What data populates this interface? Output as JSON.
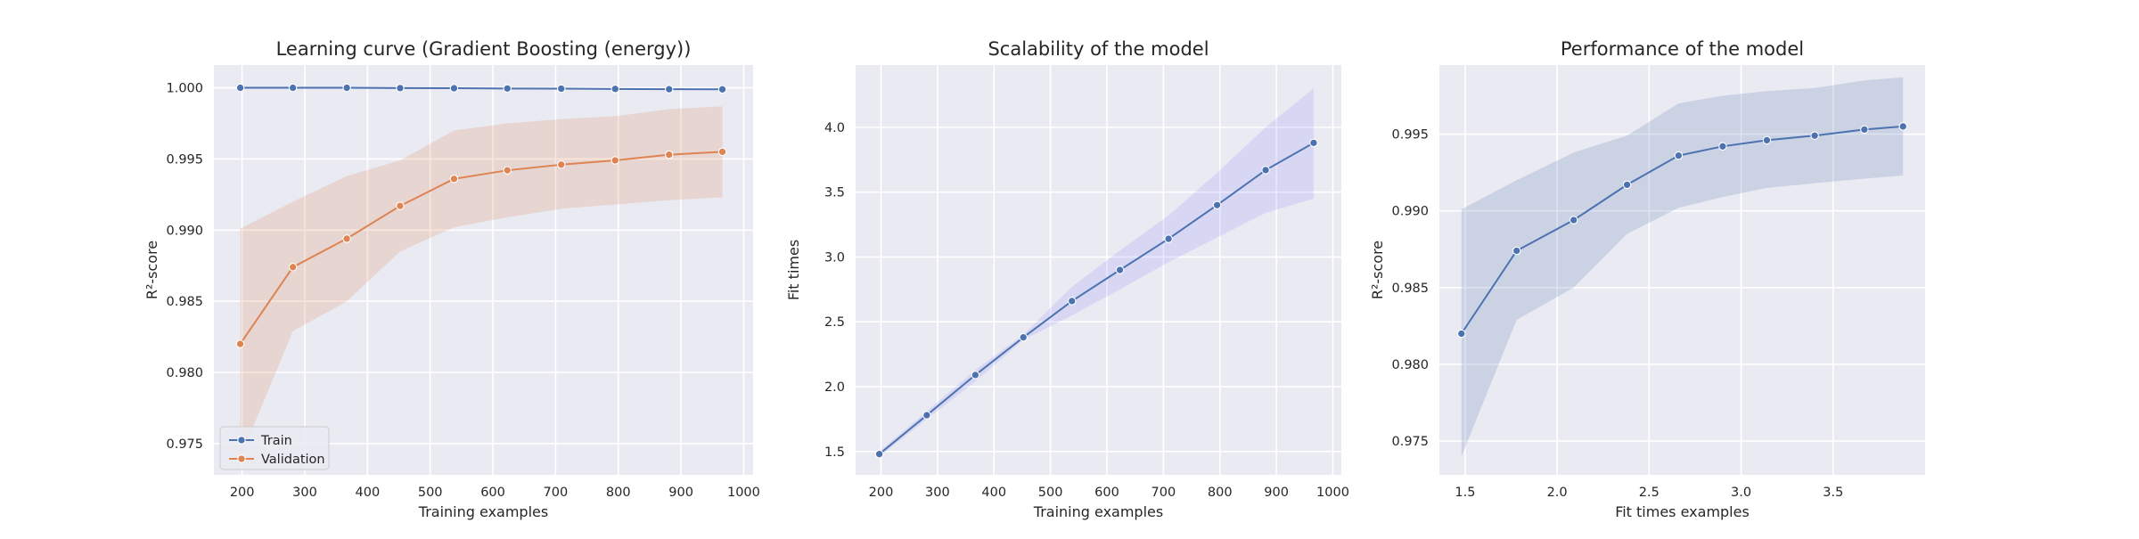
{
  "chart_data": [
    {
      "type": "line",
      "title": "Learning curve (Gradient Boosting (energy))",
      "xlabel": "Training examples",
      "ylabel": "R²-score",
      "xlim": [
        155,
        1015
      ],
      "ylim": [
        0.9728,
        1.0016
      ],
      "xticks": [
        200,
        300,
        400,
        500,
        600,
        700,
        800,
        900,
        1000
      ],
      "yticks": [
        0.975,
        0.98,
        0.985,
        0.99,
        0.995,
        1.0
      ],
      "ytick_labels": [
        "0.975",
        "0.980",
        "0.985",
        "0.990",
        "0.995",
        "1.000"
      ],
      "grid": true,
      "legend": "lower-left",
      "x": [
        197,
        281,
        367,
        452,
        538,
        623,
        709,
        795,
        881,
        966
      ],
      "series": [
        {
          "name": "Train",
          "color": "#4c72b0",
          "values": [
            1.0,
            1.0,
            1.0,
            0.99998,
            0.99997,
            0.99995,
            0.99994,
            0.99992,
            0.9999,
            0.99989
          ],
          "lower": [
            0.99998,
            0.99998,
            0.99998,
            0.99996,
            0.99995,
            0.99993,
            0.99992,
            0.9999,
            0.99988,
            0.99987
          ],
          "upper": [
            1.0,
            1.0,
            1.0,
            1.0,
            0.99999,
            0.99997,
            0.99996,
            0.99994,
            0.99992,
            0.99991
          ]
        },
        {
          "name": "Validation",
          "color": "#dd8452",
          "values": [
            0.982,
            0.9874,
            0.9894,
            0.9917,
            0.9936,
            0.9942,
            0.9946,
            0.9949,
            0.9953,
            0.9955
          ],
          "lower": [
            0.974,
            0.9829,
            0.985,
            0.9885,
            0.9902,
            0.9909,
            0.9915,
            0.9918,
            0.9921,
            0.9923
          ],
          "upper": [
            0.9901,
            0.992,
            0.9938,
            0.9949,
            0.997,
            0.9975,
            0.9978,
            0.998,
            0.9985,
            0.9987
          ]
        }
      ]
    },
    {
      "type": "line",
      "title": "Scalability of the model",
      "xlabel": "Training examples",
      "ylabel": "Fit times",
      "xlim": [
        155,
        1015
      ],
      "ylim": [
        1.32,
        4.48
      ],
      "xticks": [
        200,
        300,
        400,
        500,
        600,
        700,
        800,
        900,
        1000
      ],
      "yticks": [
        1.5,
        2.0,
        2.5,
        3.0,
        3.5,
        4.0
      ],
      "ytick_labels": [
        "1.5",
        "2.0",
        "2.5",
        "3.0",
        "3.5",
        "4.0"
      ],
      "grid": true,
      "x": [
        197,
        281,
        367,
        452,
        538,
        623,
        709,
        795,
        881,
        966
      ],
      "series": [
        {
          "color": "#4c72b0",
          "band_color": "#8c8cff",
          "values": [
            1.48,
            1.78,
            2.09,
            2.38,
            2.66,
            2.9,
            3.14,
            3.4,
            3.67,
            3.88
          ],
          "lower": [
            1.46,
            1.75,
            2.04,
            2.36,
            2.55,
            2.75,
            2.96,
            3.15,
            3.34,
            3.45
          ],
          "upper": [
            1.5,
            1.81,
            2.13,
            2.4,
            2.77,
            3.05,
            3.32,
            3.65,
            4.0,
            4.3
          ]
        }
      ]
    },
    {
      "type": "line",
      "title": "Performance of the model",
      "xlabel": "Fit times examples",
      "ylabel": "R²-score",
      "xlim": [
        1.36,
        4.0
      ],
      "ylim": [
        0.9728,
        0.9995
      ],
      "xticks": [
        1.5,
        2.0,
        2.5,
        3.0,
        3.5
      ],
      "xtick_labels": [
        "1.5",
        "2.0",
        "2.5",
        "3.0",
        "3.5"
      ],
      "yticks": [
        0.975,
        0.98,
        0.985,
        0.99,
        0.995
      ],
      "ytick_labels": [
        "0.975",
        "0.980",
        "0.985",
        "0.990",
        "0.995"
      ],
      "grid": true,
      "x": [
        1.48,
        1.78,
        2.09,
        2.38,
        2.66,
        2.9,
        3.14,
        3.4,
        3.67,
        3.88
      ],
      "series": [
        {
          "color": "#4c72b0",
          "values": [
            0.982,
            0.9874,
            0.9894,
            0.9917,
            0.9936,
            0.9942,
            0.9946,
            0.9949,
            0.9953,
            0.9955
          ],
          "lower": [
            0.974,
            0.9829,
            0.985,
            0.9885,
            0.9902,
            0.9909,
            0.9915,
            0.9918,
            0.9921,
            0.9923
          ],
          "upper": [
            0.9901,
            0.992,
            0.9938,
            0.9949,
            0.997,
            0.9975,
            0.9978,
            0.998,
            0.9985,
            0.9987
          ]
        }
      ]
    }
  ],
  "style": {
    "axes_background": "#eaeaf2",
    "grid_color": "#ffffff",
    "text_color": "#262626"
  }
}
